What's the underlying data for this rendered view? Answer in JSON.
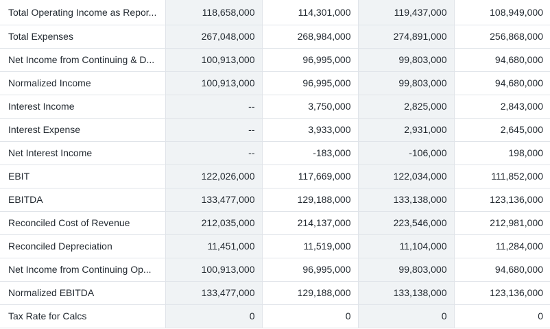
{
  "rows": [
    {
      "label": "Total Operating Income as Repor...",
      "values": [
        "118,658,000",
        "114,301,000",
        "119,437,000",
        "108,949,000"
      ]
    },
    {
      "label": "Total Expenses",
      "values": [
        "267,048,000",
        "268,984,000",
        "274,891,000",
        "256,868,000"
      ]
    },
    {
      "label": "Net Income from Continuing & D...",
      "values": [
        "100,913,000",
        "96,995,000",
        "99,803,000",
        "94,680,000"
      ]
    },
    {
      "label": "Normalized Income",
      "values": [
        "100,913,000",
        "96,995,000",
        "99,803,000",
        "94,680,000"
      ]
    },
    {
      "label": "Interest Income",
      "values": [
        "--",
        "3,750,000",
        "2,825,000",
        "2,843,000"
      ]
    },
    {
      "label": "Interest Expense",
      "values": [
        "--",
        "3,933,000",
        "2,931,000",
        "2,645,000"
      ]
    },
    {
      "label": "Net Interest Income",
      "values": [
        "--",
        "-183,000",
        "-106,000",
        "198,000"
      ]
    },
    {
      "label": "EBIT",
      "values": [
        "122,026,000",
        "117,669,000",
        "122,034,000",
        "111,852,000"
      ]
    },
    {
      "label": "EBITDA",
      "values": [
        "133,477,000",
        "129,188,000",
        "133,138,000",
        "123,136,000"
      ]
    },
    {
      "label": "Reconciled Cost of Revenue",
      "values": [
        "212,035,000",
        "214,137,000",
        "223,546,000",
        "212,981,000"
      ]
    },
    {
      "label": "Reconciled Depreciation",
      "values": [
        "11,451,000",
        "11,519,000",
        "11,104,000",
        "11,284,000"
      ]
    },
    {
      "label": "Net Income from Continuing Op...",
      "values": [
        "100,913,000",
        "96,995,000",
        "99,803,000",
        "94,680,000"
      ]
    },
    {
      "label": "Normalized EBITDA",
      "values": [
        "133,477,000",
        "129,188,000",
        "133,138,000",
        "123,136,000"
      ]
    },
    {
      "label": "Tax Rate for Calcs",
      "values": [
        "0",
        "0",
        "0",
        "0"
      ]
    }
  ]
}
